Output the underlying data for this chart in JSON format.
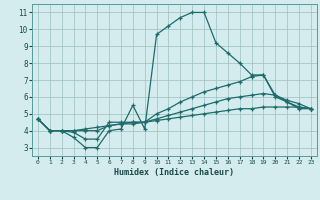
{
  "xlabel": "Humidex (Indice chaleur)",
  "background_color": "#d4ecee",
  "grid_color": "#9bbfbf",
  "line_color": "#1e6b6b",
  "xlim": [
    -0.5,
    23.5
  ],
  "ylim": [
    2.5,
    11.5
  ],
  "yticks": [
    3,
    4,
    5,
    6,
    7,
    8,
    9,
    10,
    11
  ],
  "xticks": [
    0,
    1,
    2,
    3,
    4,
    5,
    6,
    7,
    8,
    9,
    10,
    11,
    12,
    13,
    14,
    15,
    16,
    17,
    18,
    19,
    20,
    21,
    22,
    23
  ],
  "lines": [
    {
      "x": [
        0,
        1,
        2,
        3,
        4,
        5,
        6,
        7,
        8,
        9,
        10,
        11,
        12,
        13,
        14,
        15,
        16,
        17,
        18,
        19,
        20,
        21,
        22,
        23
      ],
      "y": [
        4.7,
        4.0,
        4.0,
        3.6,
        3.0,
        3.0,
        4.0,
        4.1,
        5.5,
        4.1,
        9.7,
        10.2,
        10.7,
        11.0,
        11.0,
        9.2,
        8.6,
        8.0,
        7.3,
        7.3,
        6.1,
        5.7,
        5.3,
        5.3
      ]
    },
    {
      "x": [
        0,
        1,
        2,
        3,
        4,
        5,
        6,
        7,
        8,
        9,
        10,
        11,
        12,
        13,
        14,
        15,
        16,
        17,
        18,
        19,
        20,
        21,
        22,
        23
      ],
      "y": [
        4.7,
        4.0,
        4.0,
        3.9,
        3.5,
        3.5,
        4.5,
        4.5,
        4.5,
        4.5,
        5.0,
        5.3,
        5.7,
        6.0,
        6.3,
        6.5,
        6.7,
        6.9,
        7.2,
        7.3,
        6.0,
        5.7,
        5.4,
        5.3
      ]
    },
    {
      "x": [
        0,
        1,
        2,
        3,
        4,
        5,
        6,
        7,
        8,
        9,
        10,
        11,
        12,
        13,
        14,
        15,
        16,
        17,
        18,
        19,
        20,
        21,
        22,
        23
      ],
      "y": [
        4.7,
        4.0,
        4.0,
        4.0,
        4.0,
        4.0,
        4.3,
        4.4,
        4.5,
        4.5,
        4.7,
        4.9,
        5.1,
        5.3,
        5.5,
        5.7,
        5.9,
        6.0,
        6.1,
        6.2,
        6.1,
        5.8,
        5.6,
        5.3
      ]
    },
    {
      "x": [
        0,
        1,
        2,
        3,
        4,
        5,
        6,
        7,
        8,
        9,
        10,
        11,
        12,
        13,
        14,
        15,
        16,
        17,
        18,
        19,
        20,
        21,
        22,
        23
      ],
      "y": [
        4.7,
        4.0,
        4.0,
        4.0,
        4.1,
        4.2,
        4.3,
        4.4,
        4.4,
        4.5,
        4.6,
        4.7,
        4.8,
        4.9,
        5.0,
        5.1,
        5.2,
        5.3,
        5.3,
        5.4,
        5.4,
        5.4,
        5.4,
        5.3
      ]
    }
  ]
}
